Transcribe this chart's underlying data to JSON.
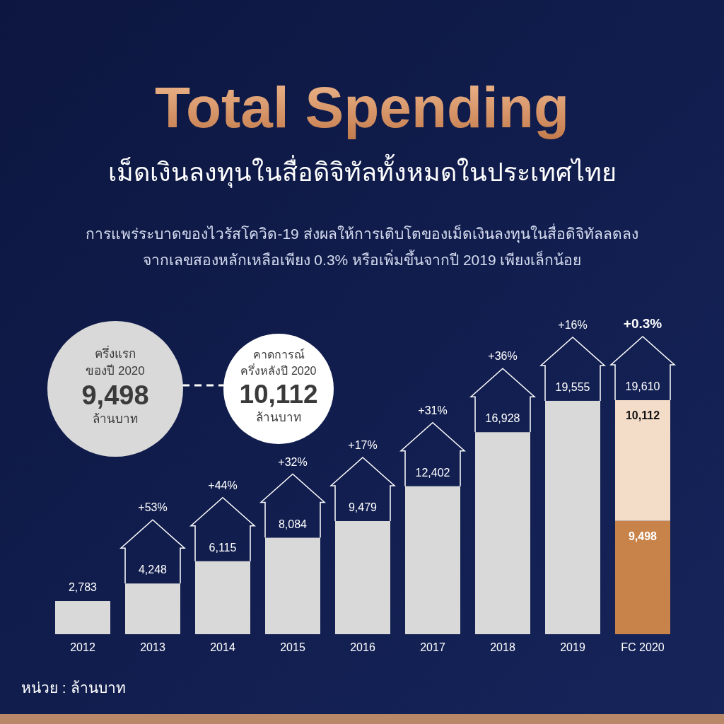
{
  "chart_data": {
    "type": "bar",
    "stacked": true,
    "title": "Total Spending",
    "subtitle": "เม็ดเงินลงทุนในสื่อดิจิทัลทั้งหมดในประเทศไทย",
    "categories": [
      "2012",
      "2013",
      "2014",
      "2015",
      "2016",
      "2017",
      "2018",
      "2019",
      "FC 2020"
    ],
    "series": [
      {
        "colors": [
          "#d9d9d9",
          "#d9d9d9",
          "#d9d9d9",
          "#d9d9d9",
          "#d9d9d9",
          "#d9d9d9",
          "#d9d9d9",
          "#d9d9d9",
          "#c8834a"
        ],
        "values": [
          2783,
          4248,
          6115,
          8084,
          9479,
          12402,
          16928,
          19555,
          9498
        ],
        "value_labels": [
          "2,783",
          "4,248",
          "6,115",
          "8,084",
          "9,479",
          "12,402",
          "16,928",
          "19,555",
          "9,498"
        ]
      },
      {
        "color": "#f3dcc8",
        "values": [
          null,
          null,
          null,
          null,
          null,
          null,
          null,
          null,
          10112
        ],
        "value_labels": [
          null,
          null,
          null,
          null,
          null,
          null,
          null,
          null,
          "10,112"
        ]
      }
    ],
    "totals": [
      null,
      null,
      null,
      null,
      null,
      null,
      null,
      null,
      "19,610"
    ],
    "annotations": [
      "การแพร่ระบาดของไวรัสโควิด-19 ส่งผลให้การเติบโตของเม็ดเงินลงทุนในสื่อดิจิทัลลดลง",
      "จากเลขสองหลักเหลือเพียง 0.3% หรือเพิ่มขึ้นจากปี 2019 เพียงเล็กน้อย",
      "ครึ่งแรก",
      "ของปี 2020",
      "9,498",
      "ล้านบาท",
      "คาดการณ์",
      "ครึ่งหลังปี 2020",
      "10,112",
      "ล้านบาท",
      "หน่วย : ล้านบาท",
      "+53%",
      "+44%",
      "+32%",
      "+17%",
      "+31%",
      "+36%",
      "+16%",
      "+0.3%"
    ]
  }
}
